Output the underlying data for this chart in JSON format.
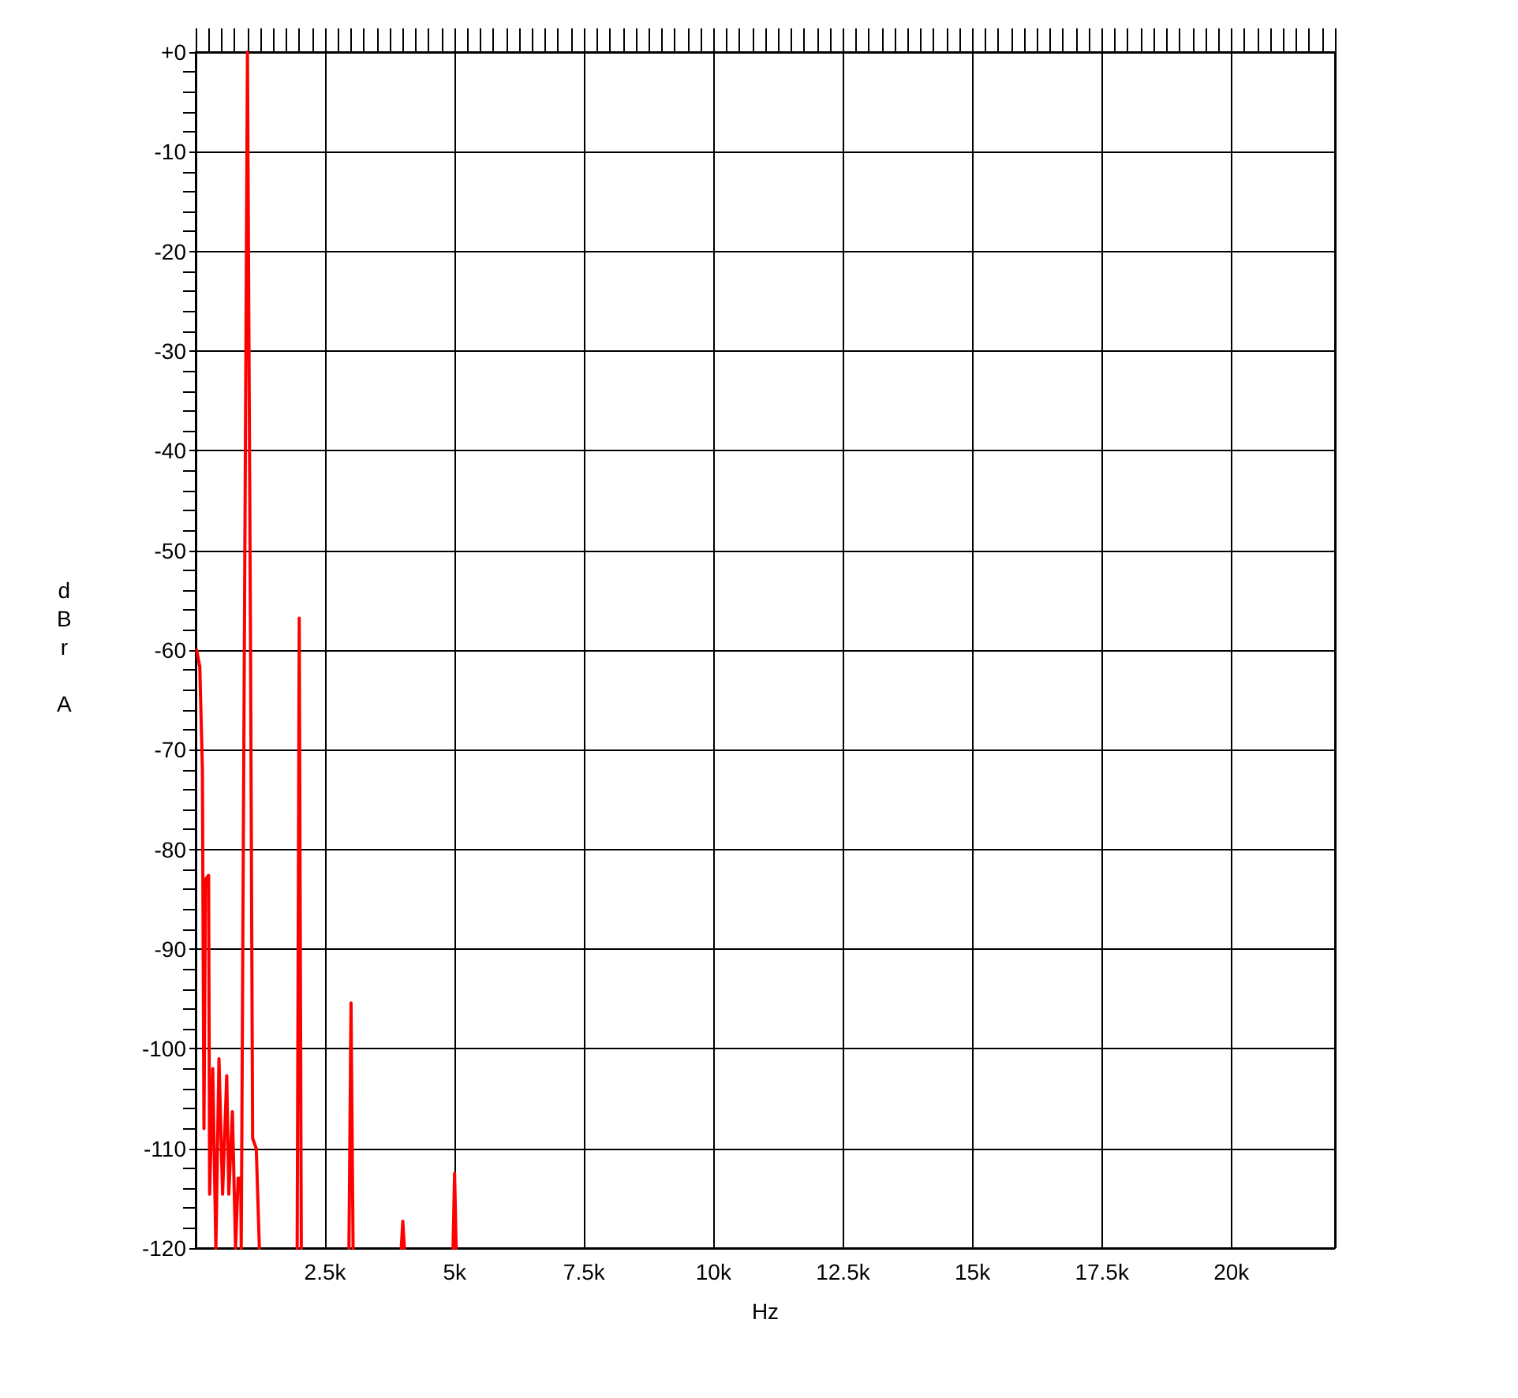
{
  "chart_data": {
    "type": "line",
    "xlabel": "Hz",
    "ylabel": "dBr A",
    "x": [
      20,
      80,
      130,
      160,
      190,
      250,
      270,
      330,
      390,
      450,
      520,
      600,
      640,
      710,
      770,
      820,
      870,
      880,
      940,
      1000,
      1060,
      1100,
      1170,
      1230,
      1600,
      1960,
      2000,
      2040,
      2500,
      2960,
      3000,
      3040,
      3500,
      3970,
      4000,
      4030,
      4500,
      4970,
      5000,
      5030
    ],
    "values": [
      -60,
      -61.7,
      -72,
      -108,
      -83,
      -82.6,
      -114.6,
      -102,
      -120,
      -101,
      -114.6,
      -102.7,
      -114.6,
      -106.3,
      -120,
      -113,
      -113,
      -120,
      -60,
      0,
      -60,
      -109,
      -110,
      -120,
      null,
      -120,
      -56.8,
      -120,
      null,
      -120,
      -95.4,
      -120,
      null,
      -120,
      -117.3,
      -120,
      null,
      -120,
      -112.5,
      -120
    ],
    "color": "#ff0000",
    "marker": "none",
    "line_style": "solid",
    "grid": true,
    "xlim": [
      0,
      22000
    ],
    "xticks": [
      {
        "value": 2500,
        "label": "2.5k"
      },
      {
        "value": 5000,
        "label": "5k"
      },
      {
        "value": 7500,
        "label": "7.5k"
      },
      {
        "value": 10000,
        "label": "10k"
      },
      {
        "value": 12500,
        "label": "12.5k"
      },
      {
        "value": 15000,
        "label": "15k"
      },
      {
        "value": 17500,
        "label": "17.5k"
      },
      {
        "value": 20000,
        "label": "20k"
      }
    ],
    "ylim": [
      -120,
      0
    ],
    "yticks": [
      {
        "value": 0,
        "label": "+0"
      },
      -10,
      -20,
      -30,
      -40,
      -50,
      -60,
      -70,
      -80,
      -90,
      -100,
      -110,
      -120
    ]
  }
}
